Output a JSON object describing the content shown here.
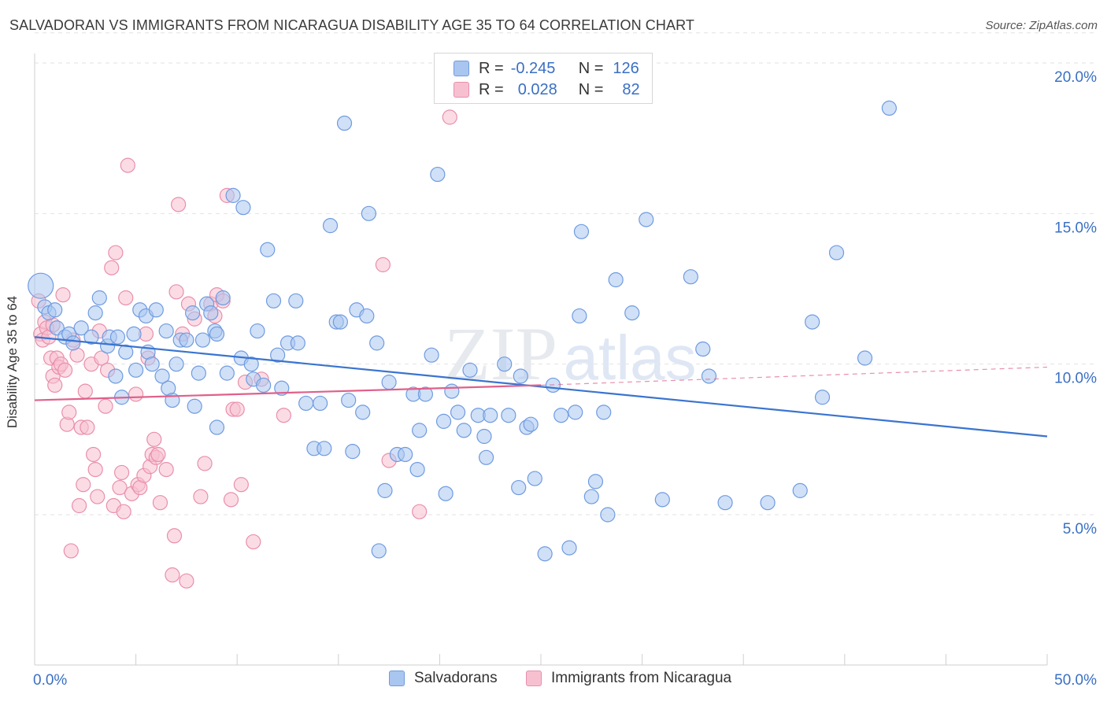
{
  "title": "SALVADORAN VS IMMIGRANTS FROM NICARAGUA DISABILITY AGE 35 TO 64 CORRELATION CHART",
  "source": "Source: ZipAtlas.com",
  "watermark": {
    "zip": "ZIP",
    "atlas": "atlas"
  },
  "legend_top": {
    "r_label": "R =",
    "n_label": "N =",
    "rows": [
      {
        "r": "-0.245",
        "n": "126",
        "color": "#a9c6f0",
        "border": "#6f9be0"
      },
      {
        "r": "0.028",
        "n": "82",
        "color": "#f7c0d0",
        "border": "#e98fab"
      }
    ]
  },
  "chart_data": {
    "type": "scatter",
    "title": "SALVADORAN VS IMMIGRANTS FROM NICARAGUA DISABILITY AGE 35 TO 64 CORRELATION CHART",
    "ylabel": "Disability Age 35 to 64",
    "xlabel": "",
    "xlim": [
      0,
      50
    ],
    "ylim": [
      0,
      21
    ],
    "x_tick_labels": [
      "0.0%",
      "50.0%"
    ],
    "y_ticks": [
      5,
      10,
      15,
      20
    ],
    "y_tick_labels": [
      "5.0%",
      "10.0%",
      "15.0%",
      "20.0%"
    ],
    "grid": "horizontal dashed",
    "legend_position": "bottom",
    "series": [
      {
        "name": "Salvadorans",
        "color": "#a9c6f0",
        "stroke": "#6f9be0",
        "trend": {
          "x": [
            0,
            50
          ],
          "y": [
            10.9,
            7.6
          ],
          "color": "#3a74d0",
          "style": "solid"
        },
        "points": [
          [
            0.3,
            12.6
          ],
          [
            0.5,
            11.9
          ],
          [
            0.7,
            11.7
          ],
          [
            1.0,
            11.8
          ],
          [
            1.1,
            11.2
          ],
          [
            1.5,
            10.9
          ],
          [
            1.7,
            11.0
          ],
          [
            1.9,
            10.7
          ],
          [
            2.3,
            11.2
          ],
          [
            2.8,
            10.9
          ],
          [
            3.0,
            11.7
          ],
          [
            3.2,
            12.2
          ],
          [
            3.6,
            10.6
          ],
          [
            3.7,
            10.9
          ],
          [
            4.0,
            9.6
          ],
          [
            4.1,
            10.9
          ],
          [
            4.3,
            8.9
          ],
          [
            4.5,
            10.4
          ],
          [
            4.9,
            11.0
          ],
          [
            5.0,
            9.8
          ],
          [
            5.2,
            11.8
          ],
          [
            5.5,
            11.6
          ],
          [
            5.6,
            10.4
          ],
          [
            5.8,
            10.0
          ],
          [
            6.0,
            11.8
          ],
          [
            6.3,
            9.6
          ],
          [
            6.5,
            11.1
          ],
          [
            6.6,
            9.2
          ],
          [
            6.8,
            8.8
          ],
          [
            7.0,
            10.0
          ],
          [
            7.2,
            10.8
          ],
          [
            7.5,
            10.8
          ],
          [
            7.8,
            11.7
          ],
          [
            7.9,
            8.6
          ],
          [
            8.1,
            9.7
          ],
          [
            8.3,
            10.8
          ],
          [
            8.5,
            12.0
          ],
          [
            8.7,
            11.7
          ],
          [
            8.9,
            11.1
          ],
          [
            9.0,
            7.9
          ],
          [
            9.3,
            12.2
          ],
          [
            9.5,
            9.7
          ],
          [
            9.8,
            15.6
          ],
          [
            10.2,
            10.2
          ],
          [
            10.3,
            15.2
          ],
          [
            10.7,
            10.0
          ],
          [
            10.8,
            9.5
          ],
          [
            11.0,
            11.1
          ],
          [
            11.3,
            9.3
          ],
          [
            11.5,
            13.8
          ],
          [
            11.8,
            12.1
          ],
          [
            12.0,
            10.3
          ],
          [
            12.2,
            9.2
          ],
          [
            12.5,
            10.7
          ],
          [
            12.9,
            12.1
          ],
          [
            13.0,
            10.7
          ],
          [
            13.4,
            8.7
          ],
          [
            13.8,
            7.2
          ],
          [
            14.1,
            8.7
          ],
          [
            14.3,
            7.2
          ],
          [
            14.6,
            14.6
          ],
          [
            14.9,
            11.4
          ],
          [
            15.1,
            11.4
          ],
          [
            15.3,
            18.0
          ],
          [
            15.7,
            7.1
          ],
          [
            15.9,
            11.8
          ],
          [
            16.2,
            8.4
          ],
          [
            16.4,
            11.6
          ],
          [
            16.5,
            15.0
          ],
          [
            16.9,
            10.7
          ],
          [
            17.0,
            3.8
          ],
          [
            17.3,
            5.8
          ],
          [
            17.5,
            9.4
          ],
          [
            17.9,
            7.0
          ],
          [
            18.3,
            7.0
          ],
          [
            18.7,
            9.0
          ],
          [
            18.9,
            6.5
          ],
          [
            19.0,
            7.8
          ],
          [
            19.3,
            9.0
          ],
          [
            19.6,
            10.3
          ],
          [
            19.9,
            16.3
          ],
          [
            20.2,
            8.1
          ],
          [
            20.3,
            5.7
          ],
          [
            20.6,
            9.1
          ],
          [
            20.9,
            8.4
          ],
          [
            21.2,
            7.8
          ],
          [
            21.5,
            9.8
          ],
          [
            21.9,
            8.3
          ],
          [
            22.2,
            7.6
          ],
          [
            22.3,
            6.9
          ],
          [
            22.5,
            8.3
          ],
          [
            23.2,
            10.0
          ],
          [
            23.4,
            8.3
          ],
          [
            23.9,
            5.9
          ],
          [
            24.3,
            7.9
          ],
          [
            24.5,
            8.0
          ],
          [
            24.7,
            6.2
          ],
          [
            25.2,
            3.7
          ],
          [
            25.6,
            9.3
          ],
          [
            26.0,
            8.3
          ],
          [
            26.4,
            3.9
          ],
          [
            26.7,
            8.4
          ],
          [
            26.9,
            11.6
          ],
          [
            27.0,
            14.4
          ],
          [
            27.5,
            5.6
          ],
          [
            27.7,
            6.1
          ],
          [
            28.1,
            8.4
          ],
          [
            28.3,
            5.0
          ],
          [
            28.7,
            12.8
          ],
          [
            29.5,
            11.7
          ],
          [
            30.2,
            14.8
          ],
          [
            31.0,
            5.5
          ],
          [
            32.4,
            12.9
          ],
          [
            33.3,
            9.6
          ],
          [
            34.1,
            5.4
          ],
          [
            36.2,
            5.4
          ],
          [
            37.8,
            5.8
          ],
          [
            38.4,
            11.4
          ],
          [
            38.9,
            8.9
          ],
          [
            39.6,
            13.7
          ],
          [
            42.2,
            18.5
          ],
          [
            41.0,
            10.2
          ],
          [
            33.0,
            10.5
          ],
          [
            24.0,
            9.6
          ],
          [
            15.5,
            8.8
          ],
          [
            9.0,
            11.0
          ]
        ]
      },
      {
        "name": "Immigrants from Nicaragua",
        "color": "#f7c0d0",
        "stroke": "#e98fab",
        "trend": {
          "x": [
            0,
            25
          ],
          "y": [
            8.8,
            9.3
          ],
          "x_dashed": [
            25,
            50
          ],
          "y_dashed": [
            9.3,
            9.9
          ],
          "color": "#e0608a",
          "style": "solid then dashed"
        },
        "points": [
          [
            0.2,
            12.1
          ],
          [
            0.3,
            11.0
          ],
          [
            0.4,
            10.8
          ],
          [
            0.5,
            11.4
          ],
          [
            0.6,
            11.2
          ],
          [
            0.7,
            10.9
          ],
          [
            0.8,
            10.2
          ],
          [
            0.9,
            9.6
          ],
          [
            1.0,
            9.3
          ],
          [
            1.1,
            10.2
          ],
          [
            1.2,
            9.9
          ],
          [
            1.3,
            10.0
          ],
          [
            1.4,
            12.3
          ],
          [
            1.5,
            9.8
          ],
          [
            1.6,
            8.0
          ],
          [
            1.7,
            8.4
          ],
          [
            1.8,
            3.8
          ],
          [
            1.9,
            10.8
          ],
          [
            2.1,
            10.3
          ],
          [
            2.2,
            5.3
          ],
          [
            2.3,
            7.9
          ],
          [
            2.4,
            6.0
          ],
          [
            2.5,
            9.1
          ],
          [
            2.6,
            7.9
          ],
          [
            2.8,
            10.0
          ],
          [
            2.9,
            7.0
          ],
          [
            3.0,
            6.5
          ],
          [
            3.1,
            5.6
          ],
          [
            3.3,
            10.2
          ],
          [
            3.5,
            8.6
          ],
          [
            3.6,
            9.8
          ],
          [
            3.8,
            13.2
          ],
          [
            3.9,
            5.3
          ],
          [
            4.0,
            13.7
          ],
          [
            4.2,
            5.9
          ],
          [
            4.3,
            6.4
          ],
          [
            4.4,
            5.1
          ],
          [
            4.5,
            12.2
          ],
          [
            4.6,
            16.6
          ],
          [
            4.8,
            5.7
          ],
          [
            5.0,
            9.0
          ],
          [
            5.1,
            6.0
          ],
          [
            5.2,
            5.9
          ],
          [
            5.4,
            6.3
          ],
          [
            5.5,
            11.0
          ],
          [
            5.6,
            10.2
          ],
          [
            5.7,
            6.6
          ],
          [
            5.8,
            7.0
          ],
          [
            5.9,
            7.5
          ],
          [
            6.0,
            6.9
          ],
          [
            6.1,
            7.0
          ],
          [
            6.2,
            5.4
          ],
          [
            6.5,
            6.5
          ],
          [
            6.8,
            3.0
          ],
          [
            6.9,
            4.3
          ],
          [
            7.0,
            12.4
          ],
          [
            7.1,
            15.3
          ],
          [
            7.3,
            11.0
          ],
          [
            7.5,
            2.8
          ],
          [
            7.6,
            12.0
          ],
          [
            7.9,
            11.5
          ],
          [
            8.2,
            5.6
          ],
          [
            8.4,
            6.7
          ],
          [
            8.7,
            12.0
          ],
          [
            8.9,
            11.6
          ],
          [
            9.0,
            12.3
          ],
          [
            9.3,
            12.1
          ],
          [
            9.5,
            15.6
          ],
          [
            9.7,
            5.5
          ],
          [
            9.8,
            8.5
          ],
          [
            10.0,
            8.5
          ],
          [
            10.2,
            6.0
          ],
          [
            10.4,
            9.4
          ],
          [
            10.8,
            4.1
          ],
          [
            11.2,
            9.5
          ],
          [
            12.3,
            8.3
          ],
          [
            17.2,
            13.3
          ],
          [
            17.5,
            6.8
          ],
          [
            19.0,
            5.1
          ],
          [
            20.5,
            18.2
          ],
          [
            3.2,
            11.1
          ],
          [
            0.9,
            11.3
          ]
        ]
      }
    ]
  },
  "legend_bottom": [
    {
      "label": "Salvadorans",
      "color": "#a9c6f0",
      "border": "#6f9be0"
    },
    {
      "label": "Immigrants from Nicaragua",
      "color": "#f7c0d0",
      "border": "#e98fab"
    }
  ]
}
